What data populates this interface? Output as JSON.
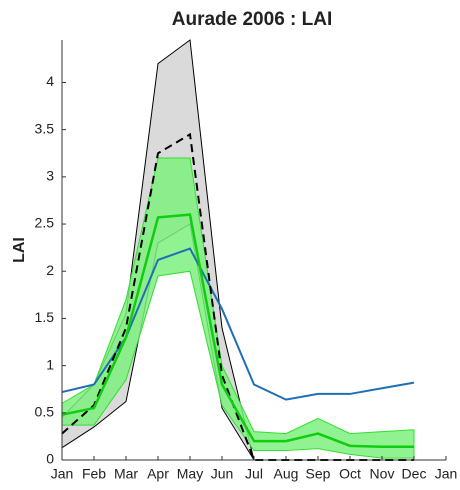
{
  "chart_data": {
    "type": "line",
    "title": "Aurade 2006  : LAI",
    "y_label": "LAI",
    "x": [
      1,
      2,
      3,
      4,
      5,
      6,
      7,
      8,
      9,
      10,
      11,
      12
    ],
    "xlim": [
      1,
      13
    ],
    "xticks": [
      {
        "value": 1,
        "label": "Jan"
      },
      {
        "value": 2,
        "label": "Feb"
      },
      {
        "value": 3,
        "label": "Mar"
      },
      {
        "value": 4,
        "label": "Apr"
      },
      {
        "value": 5,
        "label": "May"
      },
      {
        "value": 6,
        "label": "Jun"
      },
      {
        "value": 7,
        "label": "Jul"
      },
      {
        "value": 8,
        "label": "Aug"
      },
      {
        "value": 9,
        "label": "Sep"
      },
      {
        "value": 10,
        "label": "Oct"
      },
      {
        "value": 11,
        "label": "Nov"
      },
      {
        "value": 12,
        "label": "Dec"
      },
      {
        "value": 13,
        "label": "Jan"
      }
    ],
    "ylim": [
      0,
      4.45
    ],
    "yticks": [
      0,
      0.5,
      1,
      1.5,
      2,
      2.5,
      3,
      3.5,
      4
    ],
    "grid": false,
    "bands": [
      {
        "color": "#d3d3d3",
        "edge": "#000000",
        "upper": [
          0.45,
          0.8,
          1.55,
          4.2,
          4.45,
          1.4,
          0,
          0,
          0,
          0,
          0,
          0
        ],
        "lower": [
          0.13,
          0.35,
          0.62,
          2.3,
          2.5,
          0.55,
          0,
          0,
          0,
          0,
          0,
          0
        ]
      },
      {
        "color": "#7ef07e",
        "edge": "#33dd33",
        "upper": [
          0.6,
          0.8,
          1.7,
          3.2,
          3.2,
          1.0,
          0.3,
          0.28,
          0.44,
          0.28,
          0.3,
          0.32
        ],
        "lower": [
          0.37,
          0.37,
          0.85,
          1.95,
          2.0,
          0.58,
          0.1,
          0.1,
          0.12,
          0.06,
          0.02,
          0.02
        ]
      }
    ],
    "series": [
      {
        "color": "#1f6fb4",
        "width": 2,
        "dash": false,
        "values": [
          0.72,
          0.8,
          1.3,
          2.12,
          2.24,
          1.6,
          0.8,
          0.64,
          0.7,
          0.7,
          0.76,
          0.82
        ]
      },
      {
        "color": "#000000",
        "width": 2,
        "dash": true,
        "values": [
          0.28,
          0.58,
          1.4,
          3.25,
          3.45,
          0.9,
          0,
          0,
          0,
          0,
          0,
          0
        ]
      },
      {
        "color": "#11cc11",
        "width": 2.5,
        "dash": false,
        "values": [
          0.48,
          0.55,
          1.3,
          2.57,
          2.6,
          0.8,
          0.2,
          0.2,
          0.28,
          0.15,
          0.14,
          0.14
        ]
      }
    ]
  }
}
